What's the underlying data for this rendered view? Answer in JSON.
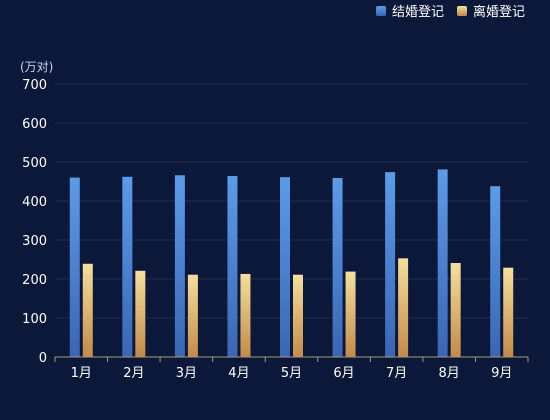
{
  "chart_data": {
    "type": "bar",
    "title": "",
    "xlabel": "",
    "ylabel": "(万对)",
    "ylim": [
      0,
      700
    ],
    "yticks": [
      0,
      100,
      200,
      300,
      400,
      500,
      600,
      700
    ],
    "grid": true,
    "legend_position": "top-right",
    "categories": [
      "1月",
      "2月",
      "3月",
      "4月",
      "5月",
      "6月",
      "7月",
      "8月",
      "9月"
    ],
    "series": [
      {
        "name": "结婚登记",
        "color_top": "#5b9be8",
        "color_bottom": "#3a66b4",
        "values": [
          460,
          462,
          466,
          464,
          461,
          459,
          474,
          481,
          438
        ]
      },
      {
        "name": "离婚登记",
        "color_top": "#f5df9c",
        "color_bottom": "#c48a48",
        "values": [
          239,
          221,
          211,
          213,
          211,
          219,
          253,
          241,
          229
        ]
      }
    ],
    "colors": {
      "background": "#0b1839",
      "grid": "#1f2c4f",
      "axis": "#a89878"
    }
  }
}
